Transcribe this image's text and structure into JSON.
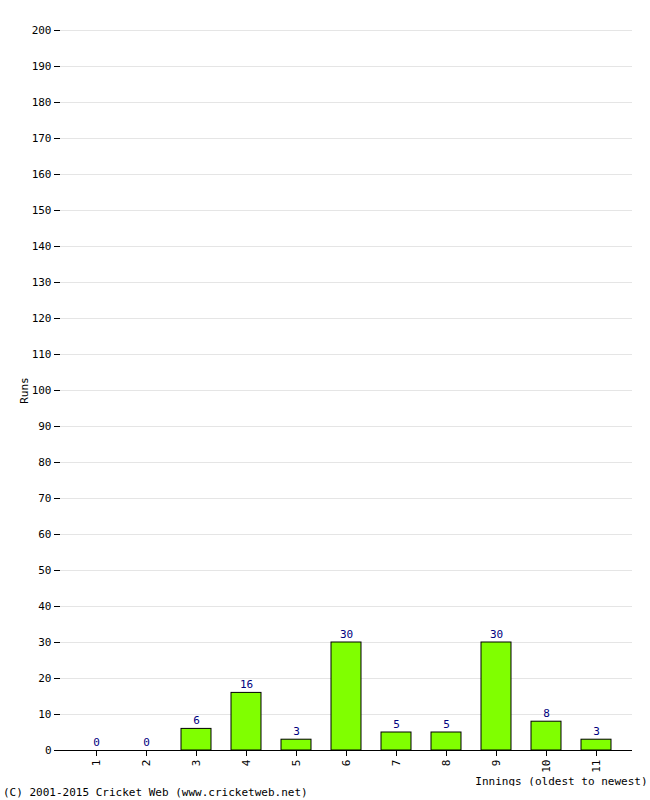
{
  "chart_data": {
    "type": "bar",
    "categories": [
      "1",
      "2",
      "3",
      "4",
      "5",
      "6",
      "7",
      "8",
      "9",
      "10",
      "11"
    ],
    "values": [
      0,
      0,
      6,
      16,
      3,
      30,
      5,
      5,
      30,
      8,
      3
    ],
    "color": "#80ff00",
    "x_label": "Innings (oldest to newest)",
    "y_label": "Runs",
    "caption": "(C) 2001-2015 Cricket Web (www.cricketweb.net)",
    "ylim": [
      0,
      200
    ],
    "yticks": [
      0,
      10,
      20,
      30,
      40,
      50,
      60,
      70,
      80,
      90,
      100,
      110,
      120,
      130,
      140,
      150,
      160,
      170,
      180,
      190,
      200
    ],
    "grid": true,
    "data_labels": true
  }
}
